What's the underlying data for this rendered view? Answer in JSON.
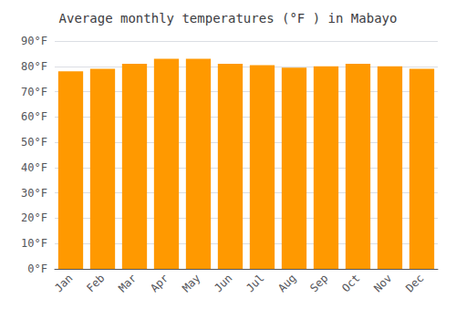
{
  "chart_data": {
    "type": "bar",
    "title": "Average monthly temperatures (°F ) in Mabayo",
    "categories": [
      "Jan",
      "Feb",
      "Mar",
      "Apr",
      "May",
      "Jun",
      "Jul",
      "Aug",
      "Sep",
      "Oct",
      "Nov",
      "Dec"
    ],
    "values": [
      78,
      79,
      81,
      83,
      83,
      81,
      80.5,
      79.5,
      80,
      81,
      80,
      79
    ],
    "color": "#FF9900",
    "ylim": [
      0,
      90
    ],
    "yticks": [
      {
        "value": 0,
        "label": "0°F"
      },
      {
        "value": 10,
        "label": "10°F"
      },
      {
        "value": 20,
        "label": "20°F"
      },
      {
        "value": 30,
        "label": "30°F"
      },
      {
        "value": 40,
        "label": "40°F"
      },
      {
        "value": 50,
        "label": "50°F"
      },
      {
        "value": 60,
        "label": "60°F"
      },
      {
        "value": 70,
        "label": "70°F"
      },
      {
        "value": 80,
        "label": "80°F"
      },
      {
        "value": 90,
        "label": "90°F"
      }
    ],
    "grid": true
  }
}
